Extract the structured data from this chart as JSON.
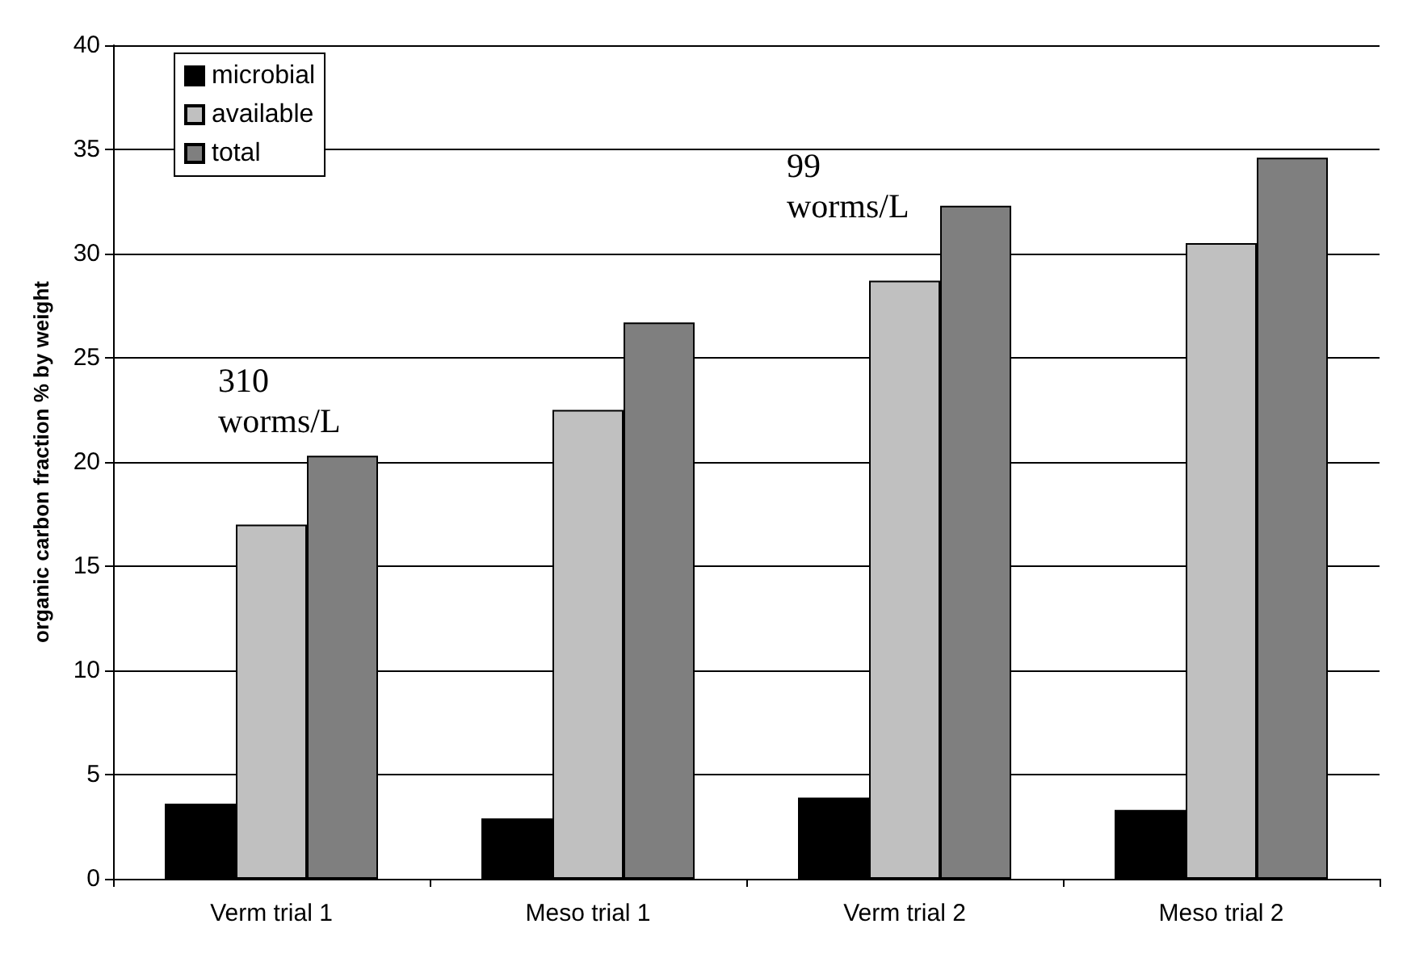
{
  "chart_data": {
    "type": "bar",
    "ylabel": "organic carbon fraction % by weight",
    "categories": [
      "Verm trial 1",
      "Meso trial 1",
      "Verm trial 2",
      "Meso trial 2"
    ],
    "series": [
      {
        "name": "microbial",
        "color": "#000000",
        "values": [
          3.6,
          2.9,
          3.9,
          3.3
        ]
      },
      {
        "name": "available",
        "color": "#c0c0c0",
        "values": [
          17.0,
          22.5,
          28.7,
          30.5
        ]
      },
      {
        "name": "total",
        "color": "#7f7f7f",
        "values": [
          20.3,
          26.7,
          32.3,
          34.6
        ]
      }
    ],
    "ylim": [
      0,
      40
    ],
    "yticks": [
      0,
      5,
      10,
      15,
      20,
      25,
      30,
      35,
      40
    ],
    "grid": "y",
    "legend": "top left",
    "annotations": [
      "310 worms/L",
      "99 worms/L"
    ]
  }
}
